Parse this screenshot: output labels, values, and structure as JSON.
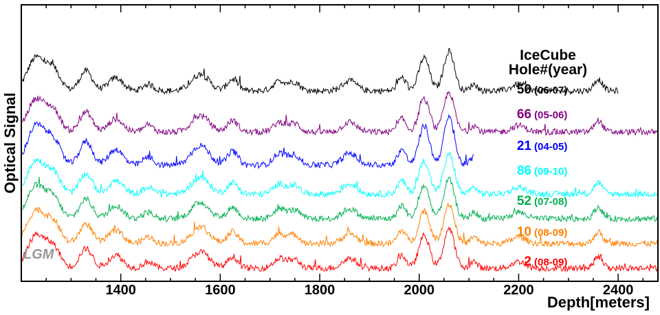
{
  "chart_data": {
    "type": "line",
    "xlabel": "Depth[meters]",
    "ylabel": "Optical Signal",
    "xlim": [
      1200,
      2480
    ],
    "x_ticks": [
      1400,
      1600,
      1800,
      2000,
      2200,
      2400
    ],
    "grid": false,
    "legend_title": [
      "IceCube",
      "Hole#(year)"
    ],
    "annotation": "LGM",
    "features": [
      {
        "center": 1230,
        "width": 25,
        "amp": 2.0
      },
      {
        "center": 1265,
        "width": 20,
        "amp": 1.2
      },
      {
        "center": 1330,
        "width": 18,
        "amp": 1.2
      },
      {
        "center": 1390,
        "width": 20,
        "amp": 0.8
      },
      {
        "center": 1455,
        "width": 15,
        "amp": 0.4
      },
      {
        "center": 1560,
        "width": 25,
        "amp": 1.0
      },
      {
        "center": 1625,
        "width": 15,
        "amp": 0.7
      },
      {
        "center": 1720,
        "width": 18,
        "amp": 0.6
      },
      {
        "center": 1750,
        "width": 15,
        "amp": 0.5
      },
      {
        "center": 1860,
        "width": 20,
        "amp": 0.6
      },
      {
        "center": 1965,
        "width": 12,
        "amp": 0.8
      },
      {
        "center": 2010,
        "width": 15,
        "amp": 2.0
      },
      {
        "center": 2060,
        "width": 15,
        "amp": 2.4
      },
      {
        "center": 2110,
        "width": 10,
        "amp": 0.4
      },
      {
        "center": 2200,
        "width": 20,
        "amp": 0.4
      },
      {
        "center": 2360,
        "width": 12,
        "amp": 0.7
      }
    ],
    "series": [
      {
        "hole": "50",
        "year": "(06-07)",
        "color": "#000000",
        "x_range": [
          1200,
          2400
        ],
        "baseline": 0.86,
        "amp_scale": 1.0
      },
      {
        "hole": "66",
        "year": "(05-06)",
        "color": "#800080",
        "x_range": [
          1200,
          2480
        ],
        "baseline": 0.66,
        "amp_scale": 1.0
      },
      {
        "hole": "21",
        "year": "(04-05)",
        "color": "#0000ff",
        "x_range": [
          1200,
          2110
        ],
        "baseline": 0.5,
        "amp_scale": 1.2
      },
      {
        "hole": "86",
        "year": "(09-10)",
        "color": "#00ffff",
        "x_range": [
          1200,
          2480
        ],
        "baseline": 0.36,
        "amp_scale": 1.0
      },
      {
        "hole": "52",
        "year": "(07-08)",
        "color": "#00b050",
        "x_range": [
          1200,
          2480
        ],
        "baseline": 0.24,
        "amp_scale": 1.0
      },
      {
        "hole": "10",
        "year": "(08-09)",
        "color": "#ff8000",
        "x_range": [
          1200,
          2480
        ],
        "baseline": 0.12,
        "amp_scale": 1.0
      },
      {
        "hole": "2",
        "year": "(08-09)",
        "color": "#ff0000",
        "x_range": [
          1200,
          2480
        ],
        "baseline": 0.0,
        "amp_scale": 1.0
      }
    ]
  }
}
